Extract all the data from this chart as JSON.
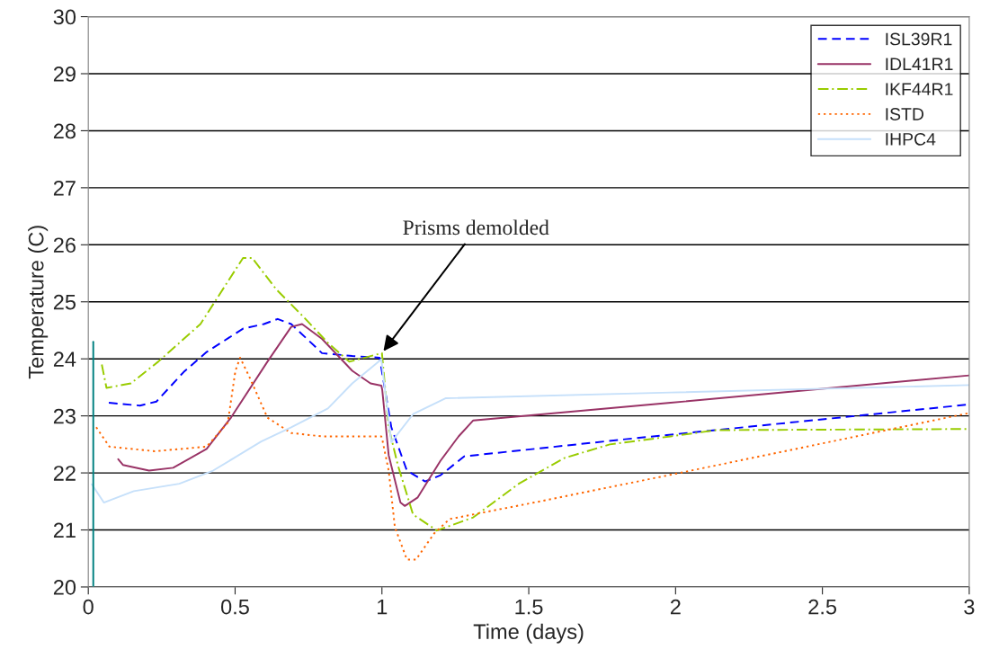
{
  "chart_data": {
    "type": "line",
    "xlabel": "Time (days)",
    "ylabel": "Temperature (C)",
    "xlim": [
      0,
      3
    ],
    "xticks": [
      0,
      0.5,
      1,
      1.5,
      2,
      2.5,
      3
    ],
    "ylim": [
      20,
      30
    ],
    "yticks": [
      20,
      21,
      22,
      23,
      24,
      25,
      26,
      27,
      28,
      29,
      30
    ],
    "grid": "y",
    "legend": "top right",
    "marker": "none",
    "annotations": [
      {
        "text": "Prisms demolded",
        "x": 1.0,
        "y": 24.1
      }
    ],
    "series": [
      {
        "name": "ISL39R1",
        "color": "#0000ff",
        "line_style": "dashed",
        "x": [
          0.07,
          0.176,
          0.232,
          0.325,
          0.403,
          0.527,
          0.598,
          0.645,
          0.691,
          0.796,
          0.899,
          0.992,
          1.032,
          1.085,
          1.147,
          1.2,
          1.28,
          1.828,
          3.0
        ],
        "values": [
          23.23,
          23.18,
          23.25,
          23.77,
          24.12,
          24.53,
          24.61,
          24.7,
          24.61,
          24.1,
          24.05,
          24.02,
          22.8,
          22.04,
          21.85,
          21.96,
          22.29,
          22.59,
          23.2
        ]
      },
      {
        "name": "IDL41R1",
        "color": "#993366",
        "line_style": "solid",
        "x": [
          0.102,
          0.118,
          0.207,
          0.289,
          0.403,
          0.486,
          0.61,
          0.691,
          0.728,
          0.796,
          0.899,
          0.961,
          0.998,
          1.001,
          1.023,
          1.063,
          1.078,
          1.122,
          1.199,
          1.261,
          1.311,
          1.983,
          3.0
        ],
        "values": [
          22.24,
          22.14,
          22.04,
          22.09,
          22.42,
          22.97,
          23.95,
          24.56,
          24.61,
          24.35,
          23.79,
          23.57,
          23.53,
          23.46,
          22.31,
          21.48,
          21.42,
          21.57,
          22.21,
          22.64,
          22.92,
          23.23,
          23.71
        ]
      },
      {
        "name": "IKF44R1",
        "color": "#99cc00",
        "line_style": "dashdot",
        "x": [
          0.046,
          0.062,
          0.145,
          0.238,
          0.382,
          0.527,
          0.558,
          0.64,
          0.734,
          0.816,
          0.889,
          1.0,
          1.023,
          1.054,
          1.106,
          1.187,
          1.311,
          1.466,
          1.621,
          1.776,
          1.983,
          2.138,
          3.0
        ],
        "values": [
          23.9,
          23.49,
          23.57,
          23.95,
          24.61,
          25.77,
          25.77,
          25.22,
          24.73,
          24.28,
          23.95,
          24.1,
          22.8,
          22.14,
          21.27,
          20.99,
          21.22,
          21.81,
          22.26,
          22.5,
          22.64,
          22.75,
          22.77
        ]
      },
      {
        "name": "ISTD",
        "color": "#ff6600",
        "line_style": "dotted",
        "x": [
          0.027,
          0.072,
          0.227,
          0.403,
          0.475,
          0.501,
          0.517,
          0.548,
          0.61,
          0.691,
          0.796,
          0.998,
          1.001,
          1.023,
          1.044,
          1.085,
          1.116,
          1.178,
          1.23,
          1.518,
          2.005,
          3.0
        ],
        "values": [
          22.8,
          22.46,
          22.38,
          22.46,
          22.88,
          23.79,
          24.02,
          23.69,
          22.97,
          22.7,
          22.64,
          22.64,
          22.59,
          22.04,
          21.05,
          20.48,
          20.48,
          20.94,
          21.19,
          21.48,
          21.99,
          23.05
        ]
      },
      {
        "name": "IHPC4",
        "color": "#c6e0fa",
        "line_style": "solid",
        "x": [
          0.012,
          0.053,
          0.155,
          0.31,
          0.425,
          0.589,
          0.691,
          0.816,
          0.899,
          0.998,
          1.032,
          1.106,
          1.218,
          1.983,
          3.0
        ],
        "values": [
          21.8,
          21.48,
          21.68,
          21.81,
          22.04,
          22.55,
          22.8,
          23.13,
          23.57,
          23.99,
          22.54,
          23.03,
          23.31,
          23.41,
          23.54
        ]
      },
      {
        "color": "#008080",
        "line_style": "solid",
        "x": [
          0.017,
          0.017
        ],
        "values": [
          20,
          24.3
        ]
      }
    ]
  }
}
